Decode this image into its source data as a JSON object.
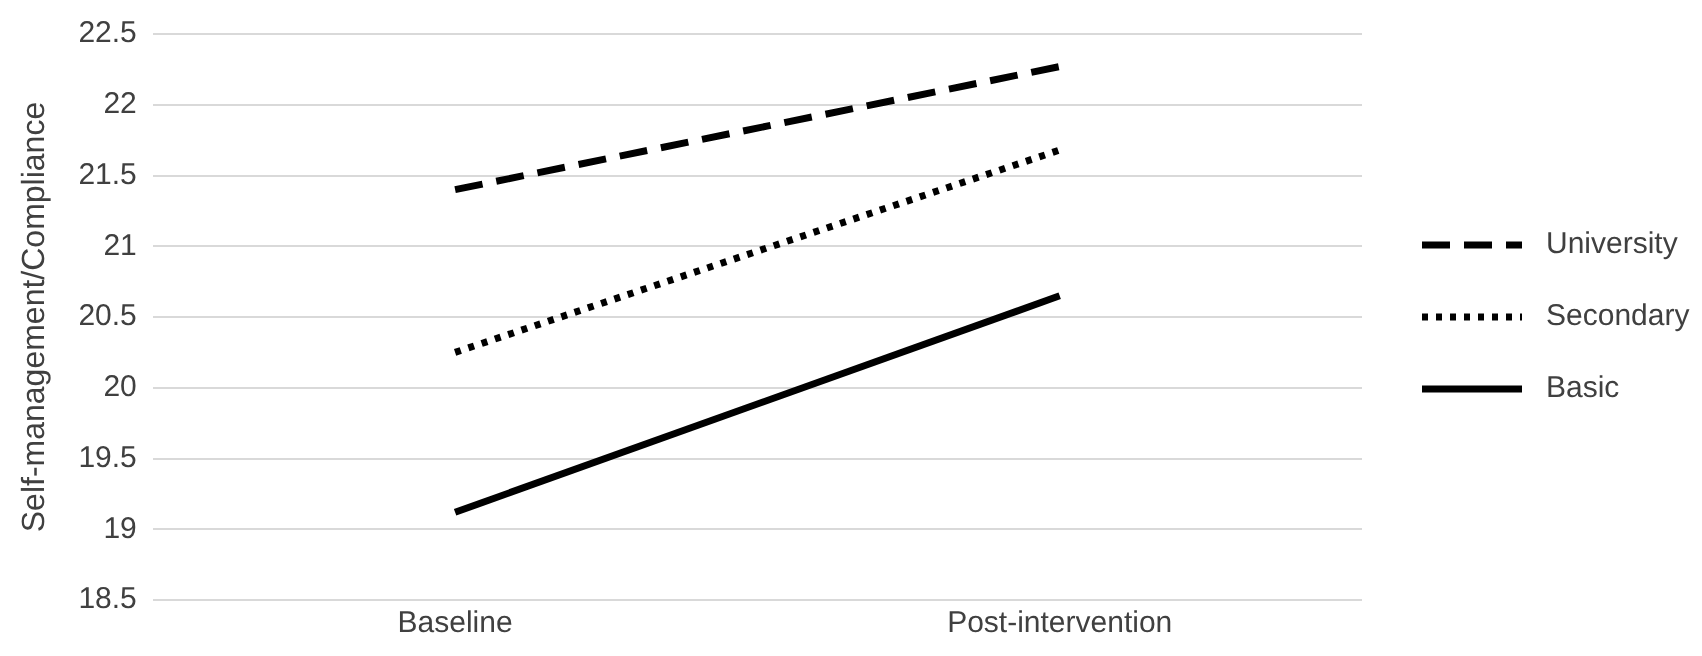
{
  "chart_data": {
    "type": "line",
    "ylabel": "Self-management/Compliance",
    "categories": [
      "Baseline",
      "Post-intervention"
    ],
    "series": [
      {
        "name": "University",
        "color": "#000000",
        "line_style": "dashed",
        "values": [
          21.4,
          22.27
        ]
      },
      {
        "name": "Secondary",
        "color": "#000000",
        "line_style": "dotted",
        "values": [
          20.25,
          21.68
        ]
      },
      {
        "name": "Basic",
        "color": "#000000",
        "line_style": "solid",
        "values": [
          19.12,
          20.65
        ]
      }
    ],
    "ylim": [
      18.5,
      22.5
    ],
    "yticks": [
      18.5,
      19,
      19.5,
      20,
      20.5,
      21,
      21.5,
      22,
      22.5
    ],
    "grid": "y",
    "legend": "right",
    "marker": "none"
  }
}
